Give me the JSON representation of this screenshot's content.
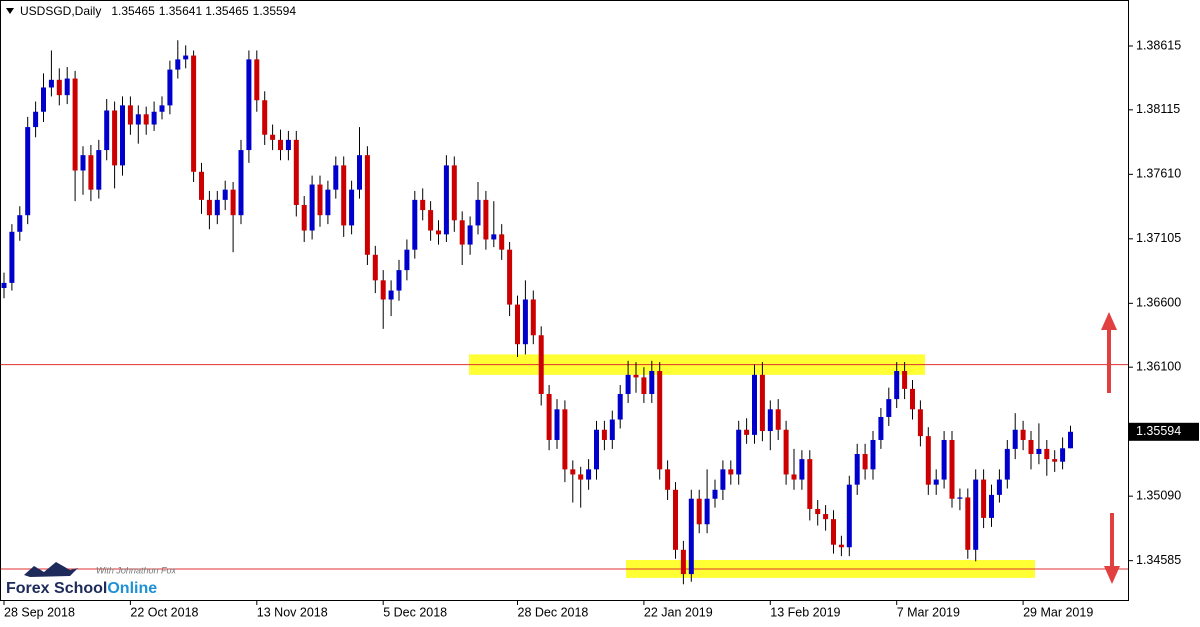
{
  "chart_data": {
    "type": "candlestick",
    "title": "USDSGD,Daily",
    "up_color": "#0000cd",
    "down_color": "#cc0000",
    "wick_color": "#000000",
    "categories": [
      "28 Sep 2018",
      null,
      null,
      null,
      null,
      null,
      null,
      null,
      null,
      null,
      null,
      null,
      null,
      null,
      null,
      null,
      "22 Oct 2018",
      null,
      null,
      null,
      null,
      null,
      null,
      null,
      null,
      null,
      null,
      null,
      null,
      null,
      null,
      null,
      "13 Nov 2018",
      null,
      null,
      null,
      null,
      null,
      null,
      null,
      null,
      null,
      null,
      null,
      null,
      null,
      null,
      null,
      "5 Dec 2018",
      null,
      null,
      null,
      null,
      null,
      null,
      null,
      null,
      null,
      null,
      null,
      null,
      null,
      null,
      null,
      null,
      "28 Dec 2018",
      null,
      null,
      null,
      null,
      null,
      null,
      null,
      null,
      null,
      null,
      null,
      null,
      null,
      null,
      null,
      "22 Jan 2019",
      null,
      null,
      null,
      null,
      null,
      null,
      null,
      null,
      null,
      null,
      null,
      null,
      null,
      null,
      null,
      "13 Feb 2019",
      null,
      null,
      null,
      null,
      null,
      null,
      null,
      null,
      null,
      null,
      null,
      null,
      null,
      null,
      null,
      "7 Mar 2019",
      null,
      null,
      null,
      null,
      null,
      null,
      null,
      null,
      null,
      null,
      null,
      null,
      null,
      null,
      null,
      "29 Mar 2019",
      null,
      null,
      null,
      null,
      null,
      null
    ],
    "open": [
      1.3672,
      1.3676,
      1.3716,
      1.3729,
      1.3798,
      1.381,
      1.3829,
      1.3835,
      1.3823,
      1.3836,
      1.3764,
      1.3776,
      1.3749,
      1.378,
      1.3811,
      1.3768,
      1.3815,
      1.38,
      1.3808,
      1.38,
      1.381,
      1.3815,
      1.3843,
      1.3851,
      1.3854,
      1.3763,
      1.3741,
      1.3729,
      1.3741,
      1.3749,
      1.3729,
      1.378,
      1.3851,
      1.3819,
      1.3792,
      1.3788,
      1.378,
      1.3788,
      1.3737,
      1.3717,
      1.3753,
      1.3729,
      1.3749,
      1.3768,
      1.3721,
      1.3749,
      1.3776,
      1.3698,
      1.3678,
      1.3663,
      1.367,
      1.3686,
      1.3702,
      1.3741,
      1.3733,
      1.3717,
      1.3714,
      1.3768,
      1.3725,
      1.3706,
      1.3721,
      1.3741,
      1.371,
      1.3714,
      1.3702,
      1.3659,
      1.3628,
      1.3663,
      1.3635,
      1.3589,
      1.3553,
      1.3577,
      1.353,
      1.3526,
      1.3522,
      1.353,
      1.3561,
      1.3553,
      1.3569,
      1.3589,
      1.3604,
      1.3602,
      1.3589,
      1.3607,
      1.353,
      1.3514,
      1.3467,
      1.3448,
      1.3507,
      1.3487,
      1.3507,
      1.3514,
      1.353,
      1.3526,
      1.3561,
      1.3557,
      1.3604,
      1.356,
      1.3577,
      1.3561,
      1.3526,
      1.3522,
      1.3538,
      1.3499,
      1.3495,
      1.3491,
      1.3471,
      1.3469,
      1.3518,
      1.3542,
      1.353,
      1.3553,
      1.3571,
      1.3585,
      1.3607,
      1.3593,
      1.3577,
      1.3556,
      1.3518,
      1.3522,
      1.3553,
      1.3507,
      1.3508,
      1.3467,
      1.3522,
      1.3492,
      1.351,
      1.3522,
      1.3546,
      1.3561,
      1.3553,
      1.3542,
      1.3546,
      1.3538,
      1.3536,
      1.35465
    ],
    "high": [
      1.3684,
      1.3722,
      1.3736,
      1.3806,
      1.3818,
      1.384,
      1.3858,
      1.3844,
      1.3845,
      1.3842,
      1.3783,
      1.3784,
      1.3788,
      1.382,
      1.3818,
      1.3822,
      1.3822,
      1.3815,
      1.3814,
      1.3818,
      1.3822,
      1.385,
      1.3866,
      1.3862,
      1.3858,
      1.377,
      1.3748,
      1.3748,
      1.3756,
      1.3755,
      1.3788,
      1.3858,
      1.3858,
      1.3826,
      1.38,
      1.3796,
      1.3795,
      1.3795,
      1.3744,
      1.376,
      1.376,
      1.3756,
      1.3775,
      1.3775,
      1.3756,
      1.3798,
      1.3783,
      1.3705,
      1.3686,
      1.3678,
      1.3694,
      1.371,
      1.3748,
      1.375,
      1.374,
      1.3725,
      1.3776,
      1.3775,
      1.3732,
      1.3728,
      1.3755,
      1.3748,
      1.374,
      1.3722,
      1.3708,
      1.3666,
      1.3678,
      1.367,
      1.3642,
      1.3596,
      1.3585,
      1.3584,
      1.3537,
      1.3532,
      1.3538,
      1.3568,
      1.3568,
      1.3576,
      1.3596,
      1.3615,
      1.3614,
      1.361,
      1.3615,
      1.3614,
      1.3537,
      1.352,
      1.3474,
      1.3514,
      1.3514,
      1.353,
      1.3522,
      1.3537,
      1.3537,
      1.3568,
      1.357,
      1.3612,
      1.3614,
      1.3584,
      1.3585,
      1.3568,
      1.3546,
      1.3545,
      1.3545,
      1.3506,
      1.3502,
      1.3498,
      1.3478,
      1.3525,
      1.355,
      1.355,
      1.356,
      1.3578,
      1.3594,
      1.3614,
      1.3614,
      1.36,
      1.3584,
      1.3563,
      1.353,
      1.356,
      1.356,
      1.3515,
      1.3515,
      1.353,
      1.353,
      1.3518,
      1.353,
      1.3553,
      1.3574,
      1.3568,
      1.356,
      1.3566,
      1.3553,
      1.3545,
      1.3555,
      1.35641
    ],
    "low": [
      1.3664,
      1.367,
      1.3709,
      1.3722,
      1.379,
      1.3802,
      1.3822,
      1.3815,
      1.3816,
      1.374,
      1.3745,
      1.374,
      1.3742,
      1.3772,
      1.375,
      1.376,
      1.3792,
      1.3785,
      1.3792,
      1.3795,
      1.3804,
      1.3808,
      1.3836,
      1.3844,
      1.3755,
      1.373,
      1.3718,
      1.3722,
      1.3733,
      1.37,
      1.3722,
      1.377,
      1.381,
      1.3784,
      1.378,
      1.3772,
      1.3772,
      1.3728,
      1.3708,
      1.371,
      1.372,
      1.3722,
      1.3742,
      1.3712,
      1.3714,
      1.3742,
      1.369,
      1.3668,
      1.364,
      1.365,
      1.3662,
      1.3678,
      1.3695,
      1.3725,
      1.3709,
      1.3706,
      1.3708,
      1.3716,
      1.369,
      1.3698,
      1.3714,
      1.3702,
      1.3704,
      1.3694,
      1.365,
      1.3618,
      1.362,
      1.3628,
      1.358,
      1.3545,
      1.3546,
      1.352,
      1.3504,
      1.35,
      1.3514,
      1.3522,
      1.3545,
      1.3546,
      1.3562,
      1.3582,
      1.359,
      1.3582,
      1.3582,
      1.3522,
      1.3506,
      1.346,
      1.344,
      1.3442,
      1.348,
      1.348,
      1.35,
      1.3506,
      1.3518,
      1.3518,
      1.355,
      1.355,
      1.3552,
      1.3545,
      1.3553,
      1.3518,
      1.3514,
      1.3514,
      1.349,
      1.3486,
      1.3482,
      1.3464,
      1.3462,
      1.3462,
      1.351,
      1.3522,
      1.3522,
      1.3546,
      1.3564,
      1.3578,
      1.3585,
      1.3569,
      1.3548,
      1.351,
      1.351,
      1.3515,
      1.35,
      1.3498,
      1.346,
      1.3458,
      1.3484,
      1.3485,
      1.3504,
      1.3515,
      1.3538,
      1.3545,
      1.353,
      1.3534,
      1.3525,
      1.3528,
      1.353,
      1.35465
    ],
    "close": [
      1.3676,
      1.3716,
      1.3729,
      1.3798,
      1.381,
      1.3829,
      1.3835,
      1.3823,
      1.3836,
      1.3764,
      1.3776,
      1.3749,
      1.378,
      1.3811,
      1.3768,
      1.3815,
      1.38,
      1.3808,
      1.38,
      1.381,
      1.3815,
      1.3843,
      1.3851,
      1.3854,
      1.3763,
      1.3741,
      1.3729,
      1.3741,
      1.3749,
      1.3729,
      1.378,
      1.3851,
      1.3819,
      1.3792,
      1.3788,
      1.378,
      1.3788,
      1.3737,
      1.3717,
      1.3753,
      1.3729,
      1.3749,
      1.3768,
      1.3721,
      1.3749,
      1.3776,
      1.3698,
      1.3678,
      1.3663,
      1.367,
      1.3686,
      1.3702,
      1.3741,
      1.3733,
      1.3717,
      1.3714,
      1.3768,
      1.3725,
      1.3706,
      1.3721,
      1.3741,
      1.371,
      1.3714,
      1.3702,
      1.3659,
      1.3628,
      1.3663,
      1.3635,
      1.3589,
      1.3553,
      1.3577,
      1.353,
      1.3526,
      1.3522,
      1.353,
      1.3561,
      1.3553,
      1.3569,
      1.3589,
      1.3604,
      1.3602,
      1.3589,
      1.3607,
      1.353,
      1.3514,
      1.3467,
      1.3448,
      1.3507,
      1.3487,
      1.3507,
      1.3514,
      1.353,
      1.3526,
      1.3561,
      1.3557,
      1.3604,
      1.356,
      1.3577,
      1.3561,
      1.3526,
      1.3522,
      1.3538,
      1.3499,
      1.3495,
      1.3491,
      1.3471,
      1.3469,
      1.3518,
      1.3542,
      1.353,
      1.3553,
      1.3571,
      1.3585,
      1.3607,
      1.3593,
      1.3577,
      1.3556,
      1.3518,
      1.3522,
      1.3553,
      1.3507,
      1.3508,
      1.3467,
      1.3522,
      1.3492,
      1.351,
      1.3522,
      1.3546,
      1.3561,
      1.3553,
      1.3542,
      1.3546,
      1.3538,
      1.3536,
      1.35465,
      1.35594
    ],
    "ylim": [
      1.34277,
      1.38975
    ],
    "yticks": [
      {
        "value": 1.38615,
        "label": "1.38615"
      },
      {
        "value": 1.38115,
        "label": "1.38115"
      },
      {
        "value": 1.3761,
        "label": "1.37610"
      },
      {
        "value": 1.37105,
        "label": "1.37105"
      },
      {
        "value": 1.366,
        "label": "1.36600"
      },
      {
        "value": 1.361,
        "label": "1.36100"
      },
      {
        "value": 1.35594,
        "label": "1.35594"
      },
      {
        "value": 1.3509,
        "label": "1.35090"
      },
      {
        "value": 1.34585,
        "label": "1.34585"
      }
    ],
    "levels": [
      1.3612,
      1.3452
    ],
    "level_color": "#e03030",
    "zones": [
      [
        1.3604,
        1.362
      ],
      [
        1.3445,
        1.3459
      ]
    ],
    "zone_color": "#ffff33"
  },
  "logo": {
    "name_a": "Forex School",
    "name_b": "Online",
    "tagline": "With Johnathon Fox"
  }
}
